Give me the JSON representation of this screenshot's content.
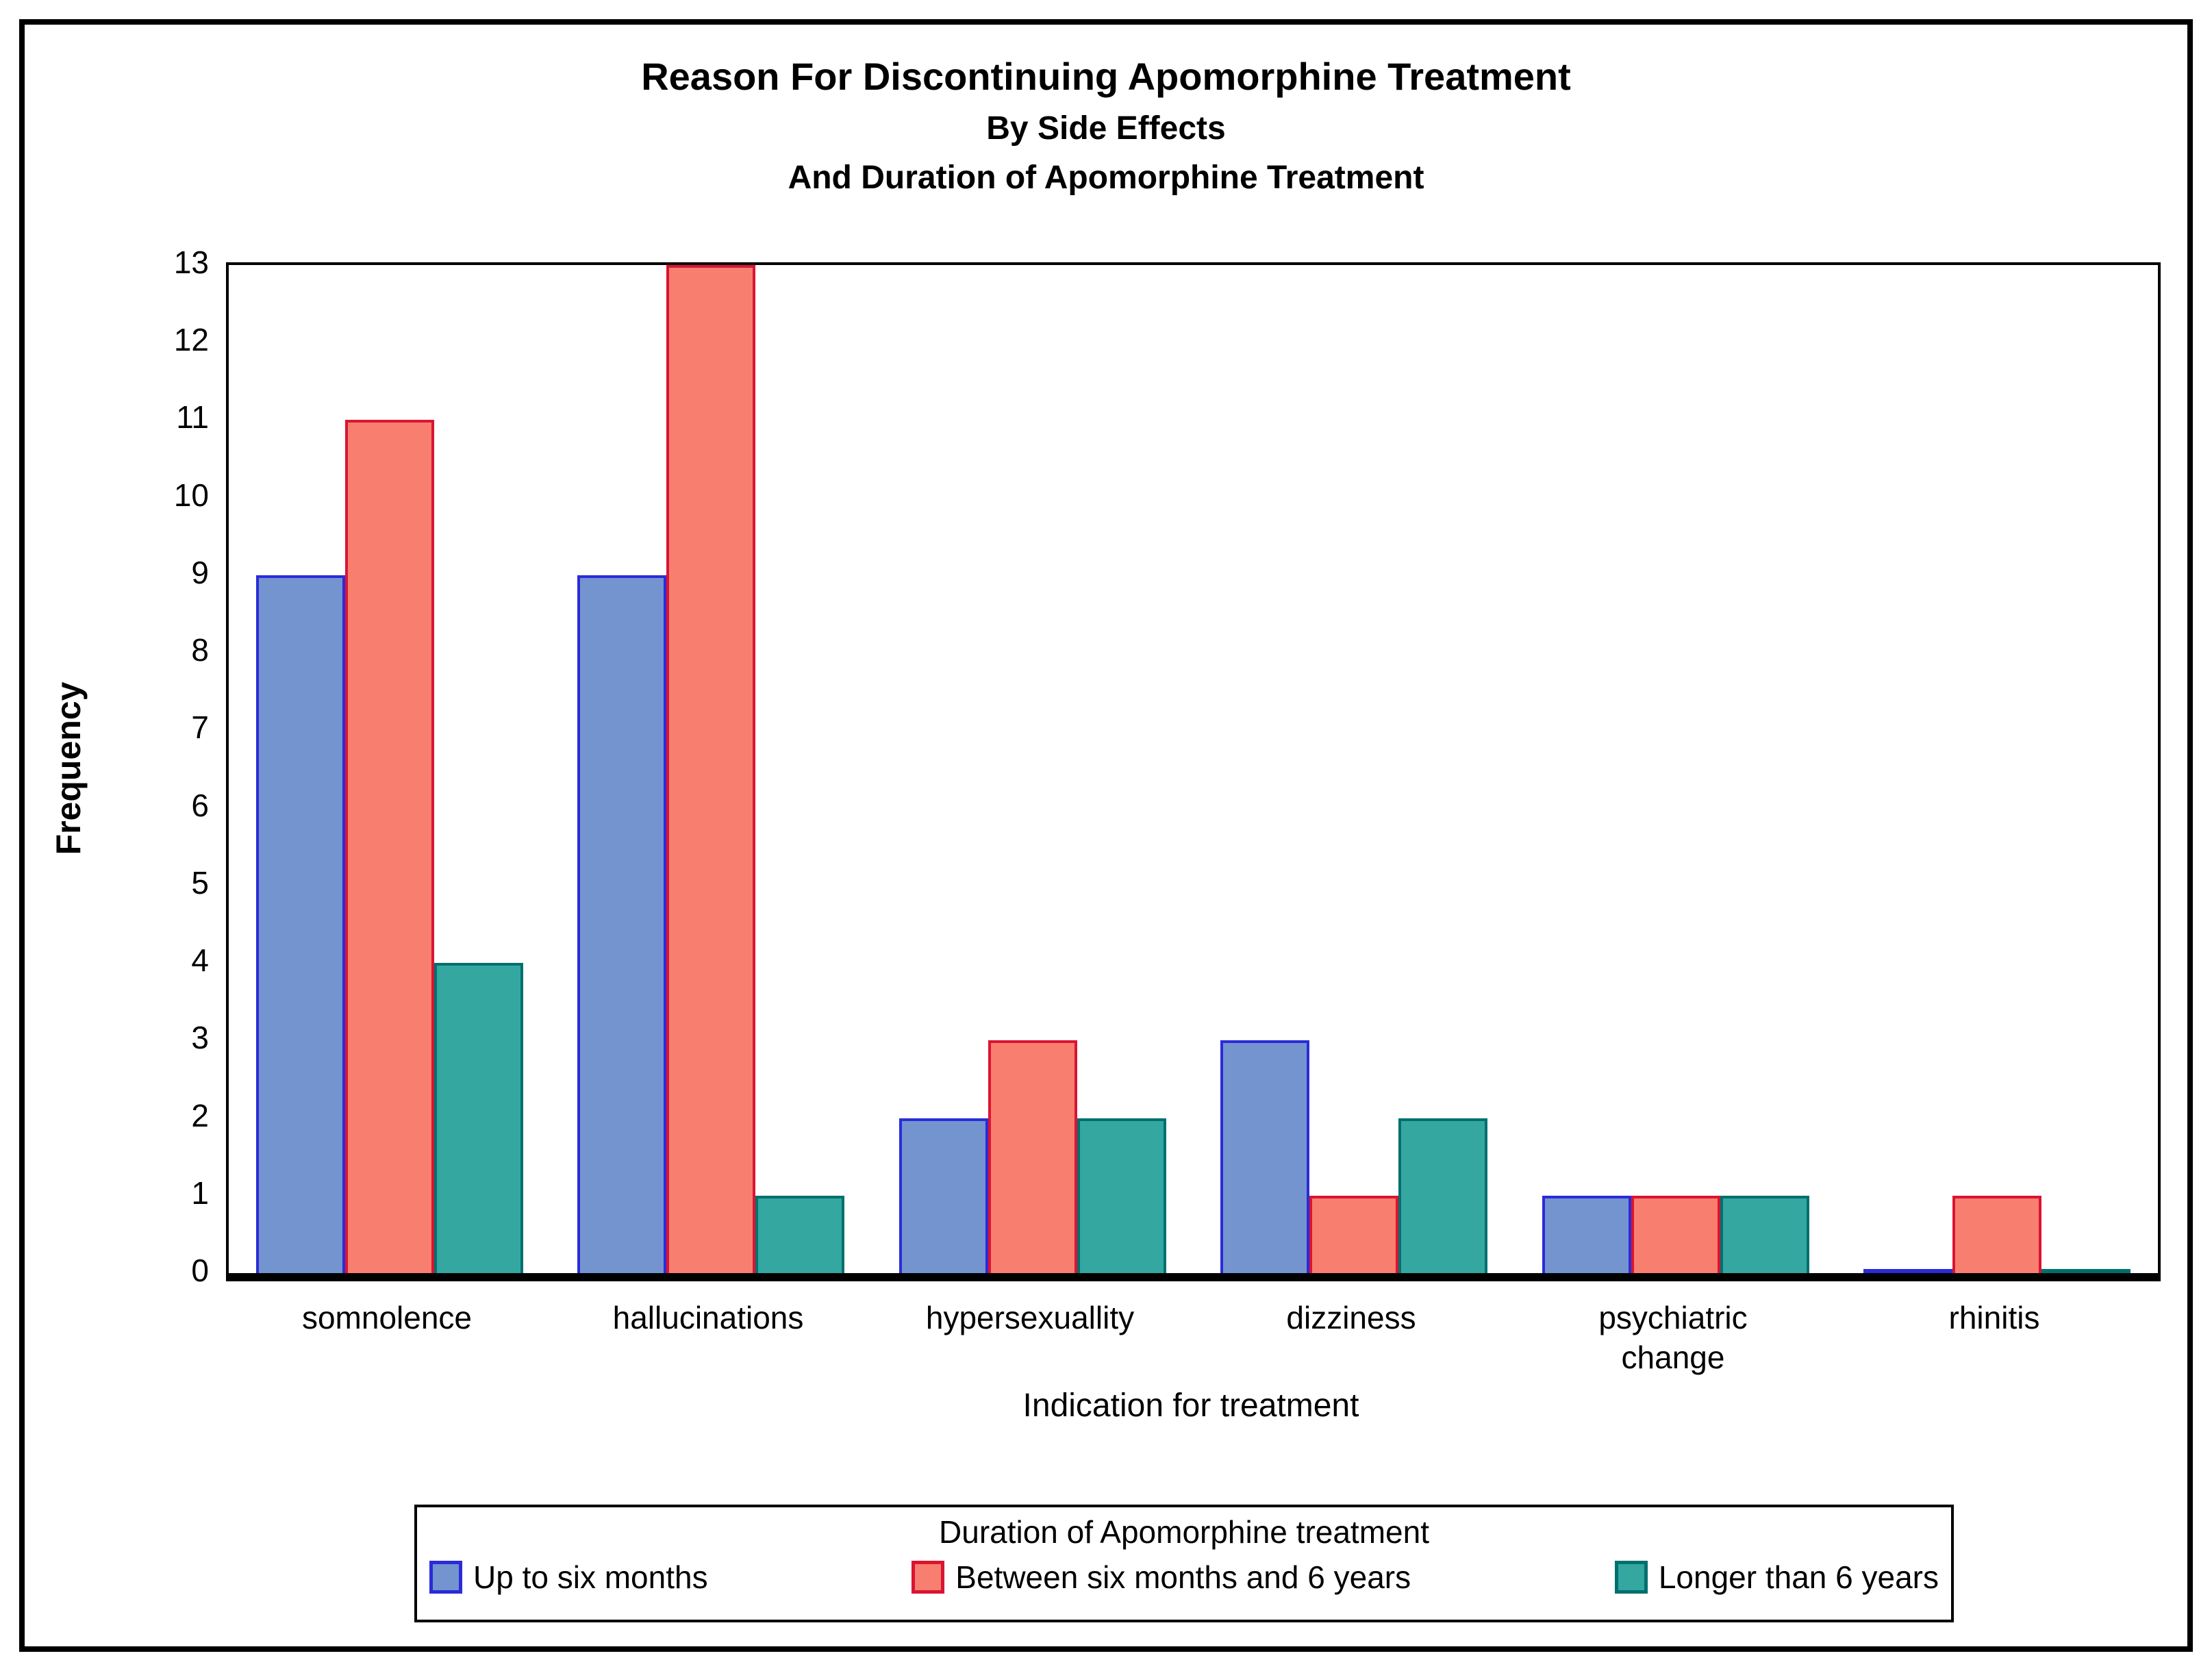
{
  "page": {
    "background": "#ffffff",
    "frame_color": "#000000"
  },
  "chart_data": {
    "type": "bar",
    "title_lines": [
      "Reason For Discontinuing Apomorphine Treatment",
      "By Side Effects",
      "And Duration of Apomorphine Treatment"
    ],
    "xlabel": "Indication for treatment",
    "ylabel": "Frequency",
    "categories": [
      "somnolence",
      "hallucinations",
      "hypersexuallity",
      "dizziness",
      "psychiatric change",
      "rhinitis"
    ],
    "series": [
      {
        "name": "Up to six months",
        "fill": "#7394CF",
        "border": "#2B2BD9",
        "values": [
          9,
          9,
          2,
          3,
          1,
          0
        ]
      },
      {
        "name": "Between six months and 6 years",
        "fill": "#F87F6F",
        "border": "#DA1433",
        "values": [
          11,
          13,
          3,
          1,
          1,
          1
        ]
      },
      {
        "name": "Longer than 6 years",
        "fill": "#34A7A1",
        "border": "#00706F",
        "values": [
          4,
          1,
          2,
          2,
          1,
          0
        ]
      }
    ],
    "ylim": [
      0,
      13
    ],
    "yticks": [
      0,
      1,
      2,
      3,
      4,
      5,
      6,
      7,
      8,
      9,
      10,
      11,
      12,
      13
    ],
    "grid": false,
    "legend_title": "Duration of Apomorphine treatment",
    "legend_position": "bottom"
  }
}
